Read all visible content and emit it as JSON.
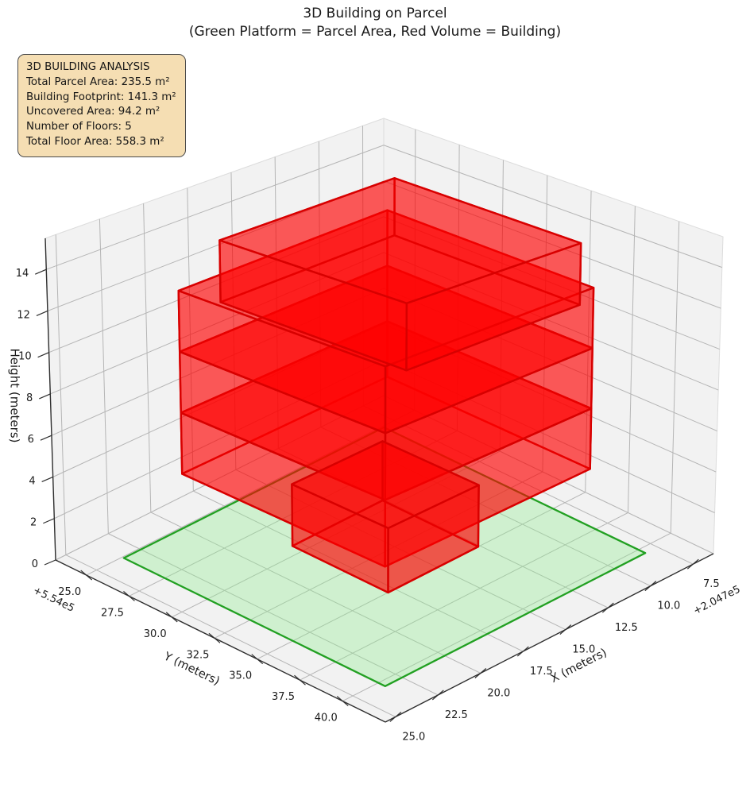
{
  "title": {
    "line1": "3D Building on Parcel",
    "line2": "(Green Platform = Parcel Area, Red Volume = Building)"
  },
  "info_box": {
    "title": "3D BUILDING ANALYSIS",
    "lines": [
      "Total Parcel Area: 235.5 m²",
      "Building Footprint: 141.3 m²",
      "Uncovered Area: 94.2 m²",
      "Number of Floors: 5",
      "Total Floor Area: 558.3 m²"
    ],
    "bg_color": "#f5deb3",
    "border_color": "#4a4a4a"
  },
  "chart_data": {
    "type": "3d-building-plot",
    "title": "3D Building on Parcel",
    "subtitle": "(Green Platform = Parcel Area, Red Volume = Building)",
    "axes": {
      "x": {
        "label": "X (meters)",
        "offset_text": "+2.047e5",
        "range": [
          6.3,
          25.6
        ],
        "tick_values": [
          7.5,
          10,
          12.5,
          15,
          17.5,
          20,
          22.5,
          25
        ],
        "tick_labels": [
          "7.5",
          "10.0",
          "12.5",
          "15.0",
          "17.5",
          "20.0",
          "22.5",
          "25.0"
        ]
      },
      "y": {
        "label": "Y (meters)",
        "offset_text": "+5.54e5",
        "range": [
          23.2,
          42.5
        ],
        "tick_values": [
          25,
          27.5,
          30,
          32.5,
          35,
          37.5,
          40
        ],
        "tick_labels": [
          "25.0",
          "27.5",
          "30.0",
          "32.5",
          "35.0",
          "37.5",
          "40.0"
        ]
      },
      "z": {
        "label": "Height (meters)",
        "range": [
          0,
          15.5
        ],
        "tick_values": [
          0,
          2,
          4,
          6,
          8,
          10,
          12,
          14
        ],
        "tick_labels": [
          "0",
          "2",
          "4",
          "6",
          "8",
          "10",
          "12",
          "14"
        ]
      }
    },
    "parcel": {
      "x": [
        8.2,
        23.5
      ],
      "y": [
        25.1,
        40.4
      ],
      "z": 0,
      "face_color": "rgba(144,238,144,0.35)",
      "edge_color": "#22a022"
    },
    "building": {
      "face_color": "rgba(255,0,0,0.40)",
      "edge_color": "#d80000",
      "floors": [
        {
          "name": "floor-1",
          "x": [
            12.6,
            17.9
          ],
          "y": [
            29.4,
            35.0
          ],
          "z": [
            0,
            3
          ]
        },
        {
          "name": "floor-2",
          "x": [
            8.4,
            20.4
          ],
          "y": [
            25.5,
            37.3
          ],
          "z": [
            3,
            6
          ]
        },
        {
          "name": "floor-3",
          "x": [
            8.4,
            20.4
          ],
          "y": [
            25.5,
            37.3
          ],
          "z": [
            6,
            9
          ]
        },
        {
          "name": "floor-4",
          "x": [
            8.4,
            20.4
          ],
          "y": [
            25.5,
            37.3
          ],
          "z": [
            9,
            12
          ]
        },
        {
          "name": "floor-5",
          "x": [
            10.1,
            20.1
          ],
          "y": [
            27.6,
            38.2
          ],
          "z": [
            12,
            15
          ]
        }
      ]
    },
    "style": {
      "pane_color": "#f2f2f2",
      "pane_edge_color": "#dcdcdc",
      "grid_color": "#b5b5b5",
      "spine_color": "#2e2e2e",
      "text_color": "#1a1a1a"
    }
  }
}
